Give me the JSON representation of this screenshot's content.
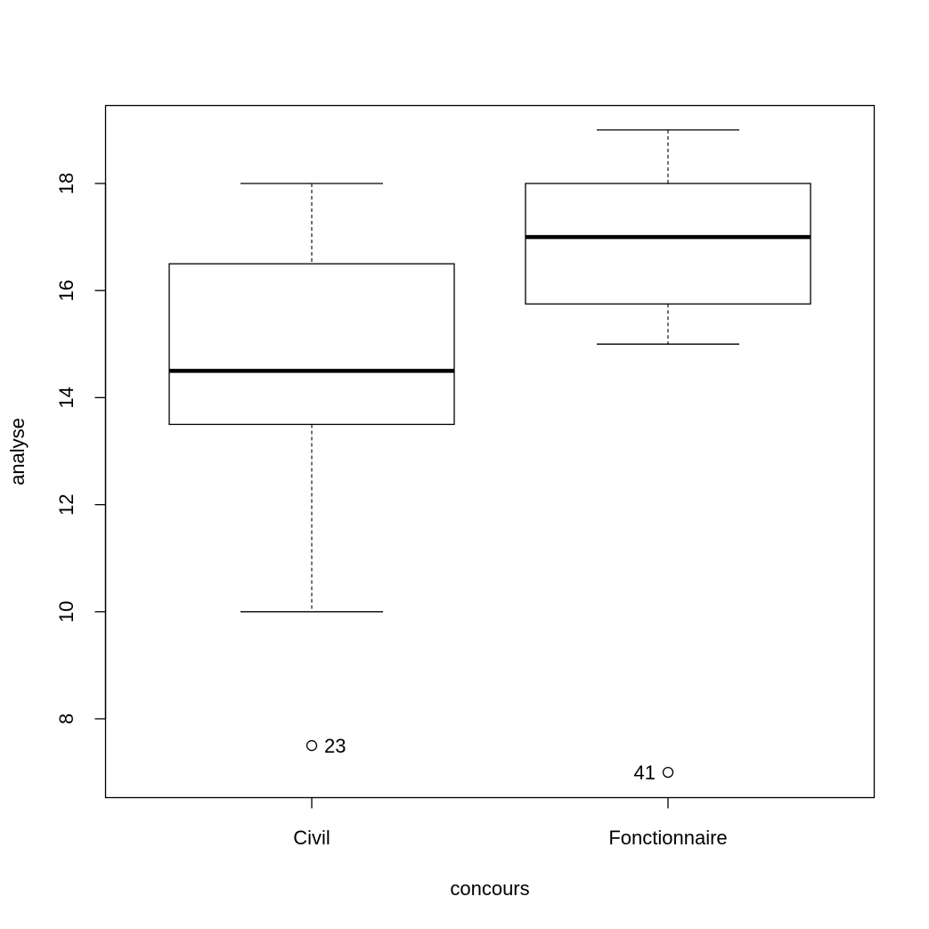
{
  "chart_data": {
    "type": "boxplot",
    "xlabel": "concours",
    "ylabel": "analyse",
    "ylim": [
      6.5,
      19.45
    ],
    "yticks": [
      8,
      10,
      12,
      14,
      16,
      18
    ],
    "grid": false,
    "categories": [
      "Civil",
      "Fonctionnaire"
    ],
    "boxes": [
      {
        "category": "Civil",
        "whisker_low": 10,
        "q1": 13.5,
        "median": 14.5,
        "q3": 16.5,
        "whisker_high": 18,
        "outliers": [
          {
            "value": 7.5,
            "label": "23"
          }
        ]
      },
      {
        "category": "Fonctionnaire",
        "whisker_low": 15,
        "q1": 15.75,
        "median": 17,
        "q3": 18,
        "whisker_high": 19,
        "outliers": [
          {
            "value": 7,
            "label": "41"
          }
        ]
      }
    ]
  }
}
